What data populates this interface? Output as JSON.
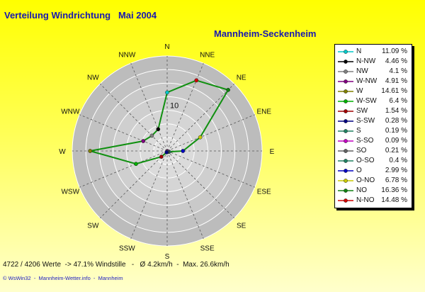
{
  "header": {
    "title": "Verteilung Windrichtung   Mai 2004",
    "station": "Mannheim-Seckenheim"
  },
  "stats": "4722 / 4206 Werte  -> 47.1% Windstille   -   Ø 4.2km/h  -  Max. 26.6km/h",
  "footer": "© WsWin32  -  Mannheim-Wetter.info  -  Mannheim",
  "colors": {
    "line": "#109010",
    "background_top": "#ffff00",
    "disc_outer": "#bdbdbd",
    "disc_inner": "#e6e6e6"
  },
  "chart_data": {
    "type": "radar",
    "title": "Verteilung Windrichtung   Mai 2004",
    "ring_label": "10",
    "max_value": 18,
    "directions": [
      "N",
      "NNE",
      "NE",
      "ENE",
      "E",
      "ESE",
      "SE",
      "SSE",
      "S",
      "SSW",
      "SW",
      "WSW",
      "W",
      "WNW",
      "NW",
      "NNW"
    ],
    "values": [
      11.09,
      14.48,
      16.36,
      6.78,
      2.99,
      0.4,
      0.21,
      0.09,
      0.19,
      0.28,
      1.54,
      6.4,
      14.61,
      4.91,
      4.1,
      4.46
    ],
    "marker_colors": [
      "#00c8c8",
      "#d00000",
      "#108010",
      "#c8c800",
      "#0000c0",
      "#208060",
      "#606060",
      "#c000c0",
      "#208060",
      "#000080",
      "#a00000",
      "#00b000",
      "#808000",
      "#800080",
      "#808080",
      "#000000"
    ]
  },
  "legend": [
    {
      "name": "N",
      "value": "11.09 %",
      "color": "#00c8c8"
    },
    {
      "name": "N-NW",
      "value": "4.46 %",
      "color": "#000000"
    },
    {
      "name": "NW",
      "value": "4.1 %",
      "color": "#808080"
    },
    {
      "name": "W-NW",
      "value": "4.91 %",
      "color": "#800080"
    },
    {
      "name": "W",
      "value": "14.61 %",
      "color": "#808000"
    },
    {
      "name": "W-SW",
      "value": "6.4 %",
      "color": "#00b000"
    },
    {
      "name": "SW",
      "value": "1.54 %",
      "color": "#a00000"
    },
    {
      "name": "S-SW",
      "value": "0.28 %",
      "color": "#000080"
    },
    {
      "name": "S",
      "value": "0.19 %",
      "color": "#208060"
    },
    {
      "name": "S-SO",
      "value": "0.09 %",
      "color": "#c000c0"
    },
    {
      "name": "SO",
      "value": "0.21 %",
      "color": "#606060"
    },
    {
      "name": "O-SO",
      "value": "0.4 %",
      "color": "#208060"
    },
    {
      "name": "O",
      "value": "2.99 %",
      "color": "#0000c0"
    },
    {
      "name": "O-NO",
      "value": "6.78 %",
      "color": "#c8c800"
    },
    {
      "name": "NO",
      "value": "16.36 %",
      "color": "#108010"
    },
    {
      "name": "N-NO",
      "value": "14.48 %",
      "color": "#d00000"
    }
  ]
}
